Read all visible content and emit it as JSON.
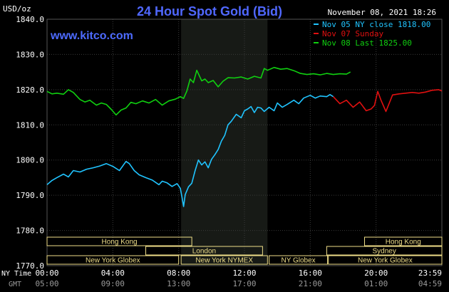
{
  "colors": {
    "background": "#000000",
    "plot_bg": "#000000",
    "ny_band": "#171a16",
    "grid": "#3a3a3a",
    "axis_text": "#ffffff",
    "title": "#5068ff",
    "brand": "#4d6bff",
    "ny_close": "#20c4ff",
    "sunday": "#e01010",
    "last": "#10d010",
    "session_fill": "#eedd88",
    "session_text": "#222222",
    "gmt_text": "#9a9a9a"
  },
  "header": {
    "unit": "USD/oz",
    "title": "24 Hour Spot Gold (Bid)",
    "datetime": "November 08, 2021 18:26",
    "brand": "www.kitco.com"
  },
  "footer": {
    "ny_time_label": "NY Time",
    "gmt_label": "GMT",
    "ny_ticks": [
      "00:00",
      "04:00",
      "08:00",
      "12:00",
      "16:00",
      "20:00",
      "23:59"
    ],
    "gmt_ticks": [
      "05:00",
      "09:00",
      "13:00",
      "17:00",
      "21:00",
      "01:00",
      "04:59"
    ]
  },
  "sessions": [
    {
      "label": "Hong Kong",
      "start": 0,
      "end": 8.8,
      "row": 0
    },
    {
      "label": "Hong Kong",
      "start": 19.3,
      "end": 24,
      "row": 0
    },
    {
      "label": "London",
      "start": 6,
      "end": 13.1,
      "row": 1
    },
    {
      "label": "Sydney",
      "start": 17,
      "end": 24,
      "row": 1
    },
    {
      "label": "New York Globex",
      "start": 0,
      "end": 8.0,
      "row": 2
    },
    {
      "label": "New York NYMEX",
      "start": 8.15,
      "end": 13.4,
      "row": 2
    },
    {
      "label": "NY Globex",
      "start": 13.5,
      "end": 17.05,
      "row": 2
    },
    {
      "label": "New York Globex",
      "start": 17.1,
      "end": 24,
      "row": 2
    }
  ],
  "chart_data": {
    "type": "line",
    "title": "24 Hour Spot Gold (Bid)",
    "ylabel": "USD/oz",
    "xlabel": "NY Time",
    "xlim": [
      0,
      24
    ],
    "ylim": [
      1770,
      1840
    ],
    "yticks": [
      1770,
      1780,
      1790,
      1800,
      1810,
      1820,
      1830,
      1840
    ],
    "yticklabels": [
      "1770.0",
      "1780.0",
      "1790.0",
      "1800.0",
      "1810.0",
      "1820.0",
      "1830.0",
      "1840.0"
    ],
    "grid": true,
    "legend_position": "top-right",
    "ny_session_shading": [
      8.15,
      13.4
    ],
    "series": [
      {
        "name": "Nov 05 NY close 1818.00",
        "color_key": "ny_close",
        "x": [
          0,
          0.3,
          0.6,
          1.0,
          1.3,
          1.6,
          2.0,
          2.4,
          2.8,
          3.2,
          3.6,
          4.0,
          4.4,
          4.8,
          5.0,
          5.3,
          5.6,
          6.0,
          6.4,
          6.8,
          7.0,
          7.3,
          7.6,
          7.9,
          8.1,
          8.2,
          8.3,
          8.4,
          8.6,
          8.8,
          9.0,
          9.2,
          9.4,
          9.6,
          9.8,
          10.0,
          10.2,
          10.4,
          10.6,
          10.8,
          11.0,
          11.2,
          11.5,
          11.8,
          12.0,
          12.2,
          12.4,
          12.6,
          12.8,
          13.0,
          13.2,
          13.5,
          13.8,
          14.0,
          14.3,
          14.6,
          15.0,
          15.3,
          15.6,
          16.0,
          16.3,
          16.6,
          17.0,
          17.2,
          17.4
        ],
        "y": [
          1793.0,
          1794.2,
          1795.0,
          1796.0,
          1795.2,
          1797.0,
          1796.6,
          1797.4,
          1797.8,
          1798.3,
          1799.0,
          1798.2,
          1797.0,
          1799.6,
          1799.0,
          1797.0,
          1795.8,
          1795.0,
          1794.3,
          1793.0,
          1794.0,
          1793.5,
          1792.5,
          1793.3,
          1792.0,
          1789.5,
          1786.8,
          1790.2,
          1792.4,
          1793.4,
          1797.0,
          1800.0,
          1798.6,
          1799.5,
          1797.8,
          1800.2,
          1801.5,
          1803.0,
          1805.4,
          1807.0,
          1810.0,
          1811.0,
          1813.0,
          1812.0,
          1814.0,
          1814.5,
          1815.2,
          1813.5,
          1815.0,
          1814.8,
          1813.8,
          1815.0,
          1814.0,
          1816.2,
          1815.0,
          1815.8,
          1817.0,
          1816.0,
          1817.6,
          1818.4,
          1817.6,
          1818.2,
          1818.0,
          1818.6,
          1818.0
        ]
      },
      {
        "name": "Nov 07 Sunday",
        "color_key": "sunday",
        "x": [
          17.4,
          17.8,
          18.2,
          18.6,
          19.0,
          19.4,
          19.7,
          19.9,
          20.1,
          20.3,
          20.6,
          21.0,
          21.4,
          21.8,
          22.2,
          22.6,
          23.0,
          23.4,
          23.8,
          24.0
        ],
        "y": [
          1818.0,
          1816.0,
          1817.0,
          1815.0,
          1816.5,
          1814.0,
          1814.5,
          1815.5,
          1819.5,
          1817.0,
          1813.8,
          1818.5,
          1818.8,
          1819.0,
          1819.2,
          1819.0,
          1819.3,
          1819.8,
          1820.0,
          1819.6
        ]
      },
      {
        "name": "Nov 08 Last 1825.00",
        "color_key": "last",
        "x": [
          0,
          0.3,
          0.6,
          1.0,
          1.3,
          1.6,
          2.0,
          2.3,
          2.6,
          3.0,
          3.3,
          3.6,
          3.9,
          4.2,
          4.5,
          4.8,
          5.1,
          5.4,
          5.8,
          6.2,
          6.6,
          7.0,
          7.4,
          7.8,
          8.1,
          8.3,
          8.5,
          8.7,
          8.9,
          9.1,
          9.4,
          9.6,
          9.8,
          10.1,
          10.4,
          10.7,
          11.0,
          11.4,
          11.8,
          12.2,
          12.6,
          13.0,
          13.2,
          13.4,
          13.8,
          14.2,
          14.6,
          15.0,
          15.4,
          15.8,
          16.2,
          16.6,
          17.0,
          17.4,
          17.8,
          18.2,
          18.44
        ],
        "y": [
          1819.5,
          1818.8,
          1819.0,
          1818.7,
          1820.0,
          1819.2,
          1817.2,
          1816.5,
          1817.0,
          1815.6,
          1816.2,
          1815.8,
          1814.4,
          1812.8,
          1814.2,
          1814.8,
          1816.4,
          1816.0,
          1816.8,
          1816.2,
          1817.2,
          1815.6,
          1816.8,
          1817.3,
          1818.0,
          1817.5,
          1819.6,
          1823.0,
          1822.0,
          1825.5,
          1822.5,
          1823.0,
          1822.0,
          1822.6,
          1820.8,
          1822.4,
          1823.4,
          1823.3,
          1823.6,
          1823.0,
          1823.8,
          1823.3,
          1826.0,
          1825.5,
          1826.3,
          1825.8,
          1826.0,
          1825.4,
          1824.6,
          1824.3,
          1824.5,
          1824.2,
          1824.6,
          1824.3,
          1824.5,
          1824.4,
          1825.0
        ]
      }
    ]
  }
}
